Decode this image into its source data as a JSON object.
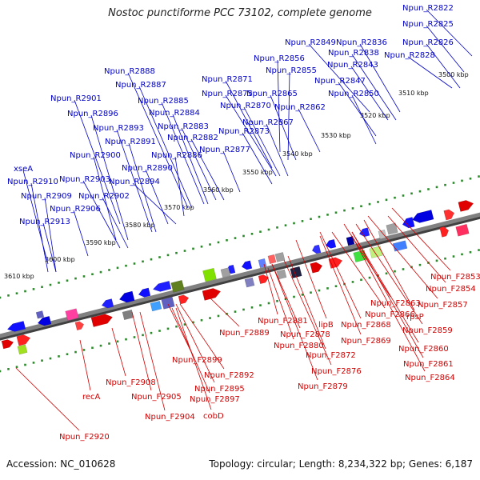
{
  "header": {
    "title": "Nostoc punctiforme PCC 73102, complete genome"
  },
  "footer": {
    "accession": "Accession: NC_010628",
    "topology": "Topology: circular;",
    "length": "Length: 8,234,322 bp;",
    "genes": "Genes: 6,187"
  },
  "colors": {
    "forward_label": "#d00000",
    "reverse_label": "#0000c8",
    "backbone": "#808080",
    "tick": "#2a8a2a"
  },
  "ticks": [
    "3500 kbp",
    "3510 kbp",
    "3520 kbp",
    "3530 kbp",
    "3540 kbp",
    "3550 kbp",
    "3560 kbp",
    "3570 kbp",
    "3580 kbp",
    "3590 kbp",
    "3600 kbp",
    "3610 kbp"
  ],
  "reverse_labels": [
    "Npun_R2822",
    "Npun_R2825",
    "Npun_R2826",
    "Npun_R2828",
    "Npun_R2836",
    "Npun_R2838",
    "Npun_R2849",
    "Npun_R2843",
    "Npun_R2856",
    "Npun_R2855",
    "Npun_R2847",
    "Npun_R2850",
    "Npun_R2865",
    "Npun_R2862",
    "Npun_R2871",
    "Npun_R2875",
    "Npun_R2870",
    "Npun_R2867",
    "Npun_R2873",
    "Npun_R2888",
    "Npun_R2887",
    "Npun_R2885",
    "Npun_R2884",
    "Npun_R2883",
    "Npun_R2882",
    "Npun_R2877",
    "Npun_R2901",
    "Npun_R2896",
    "Npun_R2893",
    "Npun_R2891",
    "Npun_R2886",
    "Npun_R2890",
    "Npun_R2900",
    "Npun_R2894",
    "Npun_R2903",
    "Npun_R2902",
    "xseA",
    "Npun_R2910",
    "Npun_R2909",
    "Npun_R2906",
    "Npun_R2913"
  ],
  "forward_labels": [
    "Npun_F2853",
    "Npun_F2854",
    "Npun_F2863",
    "Npun_F2857",
    "rpsP",
    "Npun_F2859",
    "Npun_F2860",
    "Npun_F2861",
    "Npun_F2864",
    "Npun_F2866",
    "Npun_F2868",
    "Npun_F2869",
    "lipB",
    "Npun_F2881",
    "Npun_F2878",
    "Npun_F2880",
    "Npun_F2872",
    "Npun_F2876",
    "Npun_F2879",
    "Npun_F2889",
    "Npun_F2899",
    "Npun_F2892",
    "Npun_F2895",
    "Npun_F2897",
    "cobD",
    "Npun_F2904",
    "Npun_F2905",
    "Npun_F2908",
    "recA",
    "Npun_F2920"
  ]
}
